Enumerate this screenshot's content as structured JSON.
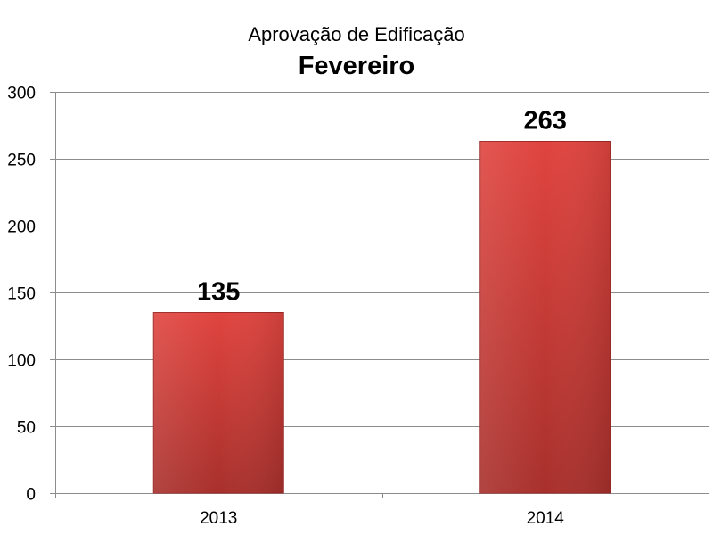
{
  "chart_data": {
    "type": "bar",
    "title": "Aprovação de Edificação",
    "subtitle": "Fevereiro",
    "categories": [
      "2013",
      "2014"
    ],
    "values": [
      135,
      263
    ],
    "data_labels": [
      "135",
      "263"
    ],
    "ylim": [
      0,
      300
    ],
    "yticks": [
      0,
      50,
      100,
      150,
      200,
      250,
      300
    ],
    "ytick_labels": [
      "0",
      "50",
      "100",
      "150",
      "200",
      "250",
      "300"
    ],
    "xlabel": "",
    "ylabel": "",
    "grid": true,
    "legend": "none",
    "colors": {
      "bar_top": "#E0443F",
      "bar_bottom": "#A8302C",
      "bar_edge": "#9B2A27",
      "grid": "#8C8C8C",
      "axis": "#8C8C8C",
      "text": "#000000"
    }
  }
}
